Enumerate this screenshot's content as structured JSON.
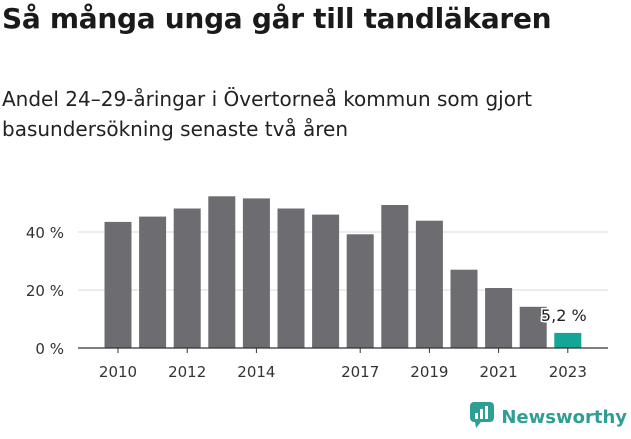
{
  "header": {
    "title": "Så många unga går till tandläkaren",
    "subtitle": "Andel 24–29-åringar i Övertorneå kommun som gjort basundersökning senaste två åren"
  },
  "brand": {
    "name": "Newsworthy",
    "icon": "newsworthy-chart-logo-icon",
    "color": "#2f9f95"
  },
  "colors": {
    "bar": "#6d6c70",
    "highlight": "#14a594",
    "grid": "#d9d9d9",
    "axis": "#333333"
  },
  "chart_data": {
    "type": "bar",
    "title": "Så många unga går till tandläkaren",
    "subtitle": "Andel 24–29-åringar i Övertorneå kommun som gjort basundersökning senaste två åren",
    "categories": [
      "2010",
      "2011",
      "2012",
      "2013",
      "2014",
      "2015",
      "2016",
      "2017",
      "2018",
      "2019",
      "2020",
      "2021",
      "2022",
      "2023"
    ],
    "values": [
      43.5,
      45.3,
      48.1,
      52.3,
      51.6,
      48.1,
      46.0,
      39.2,
      49.3,
      43.9,
      27.0,
      20.7,
      14.2,
      5.2
    ],
    "x_tick_labels": [
      "2010",
      "2012",
      "2014",
      "2017",
      "2019",
      "2021",
      "2023"
    ],
    "y_ticks": [
      0,
      20,
      40
    ],
    "y_tick_labels": [
      "0 %",
      "20 %",
      "40 %"
    ],
    "ylim": [
      0,
      56
    ],
    "highlight_index": 13,
    "annotation": {
      "index": 13,
      "text": "5,2 %"
    },
    "grid": true,
    "xlabel": "",
    "ylabel": ""
  }
}
